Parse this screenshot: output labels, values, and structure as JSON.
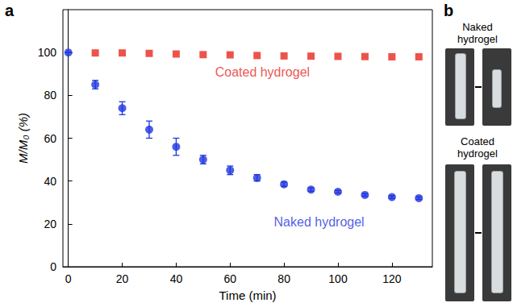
{
  "chart_data": {
    "type": "scatter",
    "panel_label": "a",
    "x_label": "Time (min)",
    "y_label": "M/M₀ (%)",
    "xlim": [
      -2,
      135
    ],
    "xticks": [
      0,
      20,
      40,
      60,
      80,
      100,
      120
    ],
    "ylim": [
      0,
      120
    ],
    "yticks": [
      0,
      20,
      40,
      60,
      80,
      100
    ],
    "grid": false,
    "series": [
      {
        "name": "Coated hydrogel",
        "color": "#e8281e",
        "marker": "square",
        "x": [
          10,
          20,
          30,
          40,
          50,
          60,
          70,
          80,
          90,
          100,
          110,
          120,
          130
        ],
        "values": [
          99.8,
          99.8,
          99.6,
          99.3,
          99,
          98.9,
          98.6,
          98.4,
          98.3,
          98.2,
          98.1,
          98,
          98
        ]
      },
      {
        "name": "Naked hydrogel",
        "color": "#1f35e0",
        "marker": "circle",
        "x": [
          0,
          10,
          20,
          30,
          40,
          50,
          60,
          70,
          80,
          90,
          100,
          110,
          120,
          130
        ],
        "values": [
          100,
          85,
          74,
          64,
          56,
          50,
          45,
          41.5,
          38.5,
          36,
          35,
          33.5,
          32.5,
          32
        ],
        "errors": [
          0,
          2,
          3,
          4,
          4,
          2,
          2,
          1.5,
          1,
          0.8,
          0.6,
          0.6,
          0.6,
          0.6
        ]
      }
    ],
    "annotations": [
      {
        "text": "Coated hydrogel",
        "x": 72,
        "y": 91
      },
      {
        "text": "Naked hydrogel",
        "x": 93,
        "y": 21
      }
    ]
  },
  "photo_panel": {
    "panel_label": "b",
    "captions": [
      "Naked hydrogel",
      "Coated hydrogel"
    ]
  }
}
